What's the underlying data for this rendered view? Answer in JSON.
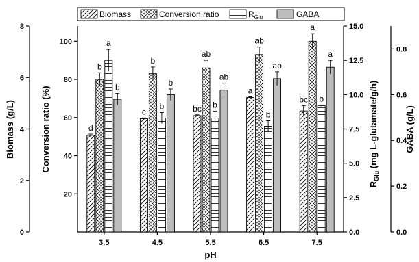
{
  "chart_data": {
    "type": "bar",
    "categories": [
      "3.5",
      "4.5",
      "5.5",
      "6.5",
      "7.5"
    ],
    "xlabel": "pH",
    "axes": {
      "biomass": {
        "label": "Biomass (g/L)",
        "range": [
          0,
          8
        ],
        "ticks": [
          "0",
          "2",
          "4",
          "6",
          "8"
        ]
      },
      "conversion": {
        "label": "Conversion ratio (%)",
        "range": [
          0,
          108
        ],
        "ticks": [
          "20",
          "40",
          "60",
          "80",
          "100"
        ]
      },
      "rglu": {
        "label_main": "R",
        "label_sub": "Glu",
        "label_rest": " (mg L-glutamate/g/h)",
        "range": [
          0,
          15
        ],
        "ticks": [
          "0.0",
          "2.5",
          "5.0",
          "7.5",
          "10.0",
          "12.5",
          "15.0"
        ]
      },
      "gaba": {
        "label": "GABA (g/L)",
        "range": [
          0,
          0.9
        ],
        "ticks": [
          "0.0",
          "0.2",
          "0.4",
          "0.6",
          "0.8"
        ]
      }
    },
    "series": [
      {
        "name": "Biomass",
        "axis": "biomass",
        "pattern": "diag",
        "values": [
          3.75,
          4.4,
          4.52,
          5.22,
          4.7
        ],
        "errors": [
          0.05,
          0.03,
          0.03,
          0.03,
          0.2
        ],
        "labels": [
          "d",
          "c",
          "bc",
          "a",
          "bc"
        ]
      },
      {
        "name": "Conversion ratio",
        "axis": "conversion",
        "pattern": "cross",
        "values": [
          80,
          83,
          86,
          93,
          100
        ],
        "errors": [
          3.5,
          3.5,
          4,
          4,
          4
        ],
        "labels": [
          "b",
          "b",
          "ab",
          "ab",
          "a"
        ]
      },
      {
        "name": "R",
        "name_sub": "Glu",
        "axis": "rglu",
        "pattern": "hlines",
        "values": [
          12.5,
          8.3,
          8.3,
          7.7,
          9.2
        ],
        "errors": [
          0.8,
          0.4,
          0.5,
          0.4,
          0.05
        ],
        "labels": [
          "a",
          "b",
          "b",
          "b",
          "b"
        ]
      },
      {
        "name": "GABA",
        "axis": "gaba",
        "pattern": "solid",
        "values": [
          0.58,
          0.6,
          0.62,
          0.67,
          0.72
        ],
        "errors": [
          0.025,
          0.025,
          0.03,
          0.03,
          0.03
        ],
        "labels": [
          "b",
          "b",
          "ab",
          "ab",
          "a"
        ]
      }
    ],
    "colors": {
      "gaba_fill": "#bdbdbd",
      "stroke": "#000000",
      "background": "#ffffff"
    },
    "legend_position": "top"
  }
}
